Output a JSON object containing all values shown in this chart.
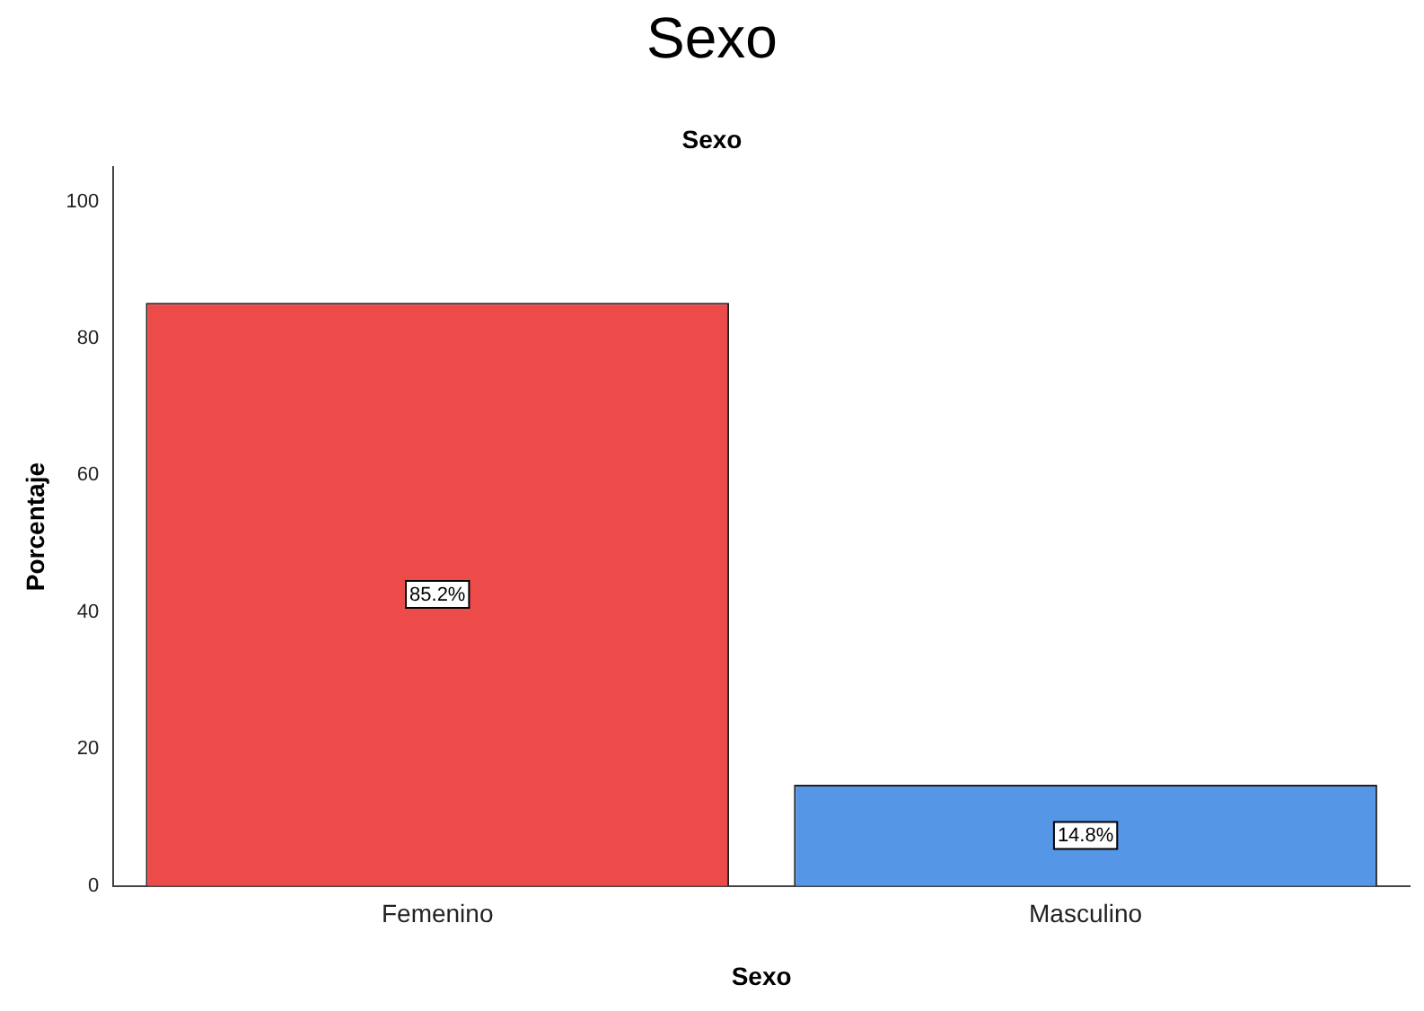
{
  "chart_data": {
    "type": "bar",
    "title": "Sexo",
    "subtitle": "Sexo",
    "xlabel": "Sexo",
    "ylabel": "Porcentaje",
    "categories": [
      "Femenino",
      "Masculino"
    ],
    "values": [
      85.2,
      14.8
    ],
    "colors": [
      "#ed4a4a",
      "#5596e6"
    ],
    "value_labels": [
      "85.2%",
      "14.8%"
    ],
    "ylim": [
      0,
      105
    ],
    "yticks": [
      0,
      20,
      40,
      60,
      80,
      100
    ],
    "grid": false,
    "legend": false
  }
}
